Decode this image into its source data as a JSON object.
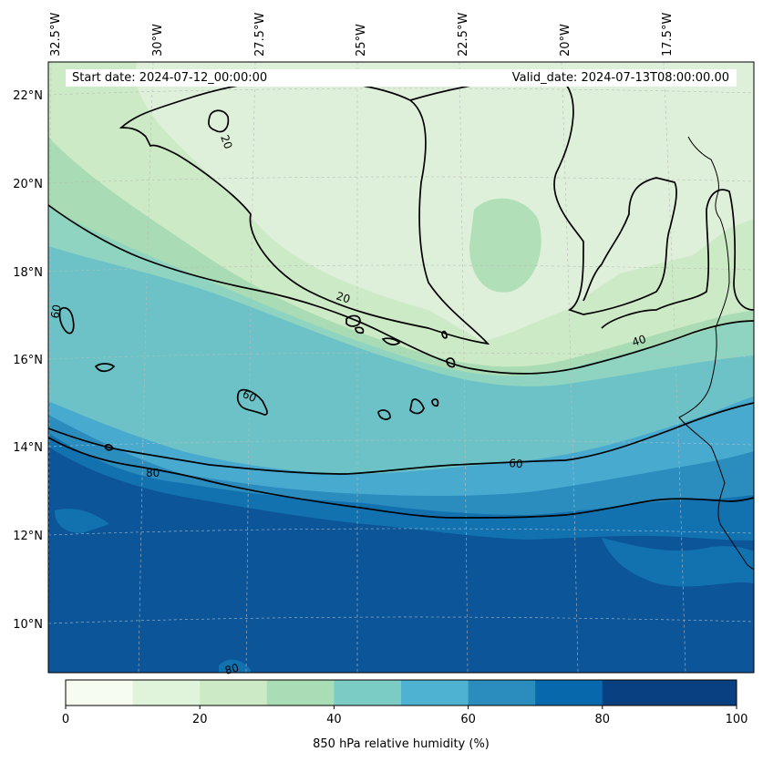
{
  "map": {
    "start_date_text": "Start date: 2024-07-12_00:00:00",
    "valid_date_text": "Valid_date: 2024-07-13T08:00:00.00",
    "lon_labels": [
      "32.5°W",
      "30°W",
      "27.5°W",
      "25°W",
      "22.5°W",
      "20°W",
      "17.5°W"
    ],
    "lat_labels": [
      "22°N",
      "20°N",
      "18°N",
      "16°N",
      "14°N",
      "12°N",
      "10°N"
    ],
    "contour_labels": [
      "20",
      "20",
      "40",
      "60",
      "60",
      "60",
      "80",
      "80"
    ],
    "fill_colors": [
      "#f7fcf0",
      "#e0f3db",
      "#ccebc5",
      "#a8ddb5",
      "#7bccc4",
      "#4eb3d3",
      "#2b8cbe",
      "#0868ac",
      "#084081"
    ]
  },
  "colorbar": {
    "title": "850 hPa relative humidity (%)",
    "min": 0,
    "max": 100,
    "ticks": [
      "0",
      "20",
      "40",
      "60",
      "80",
      "100"
    ],
    "colors": [
      "#f7fcf0",
      "#e0f3db",
      "#ccebc5",
      "#a8ddb5",
      "#7bccc4",
      "#4eb3d3",
      "#2b8cbe",
      "#0868ac",
      "#084081",
      "#084081"
    ]
  }
}
